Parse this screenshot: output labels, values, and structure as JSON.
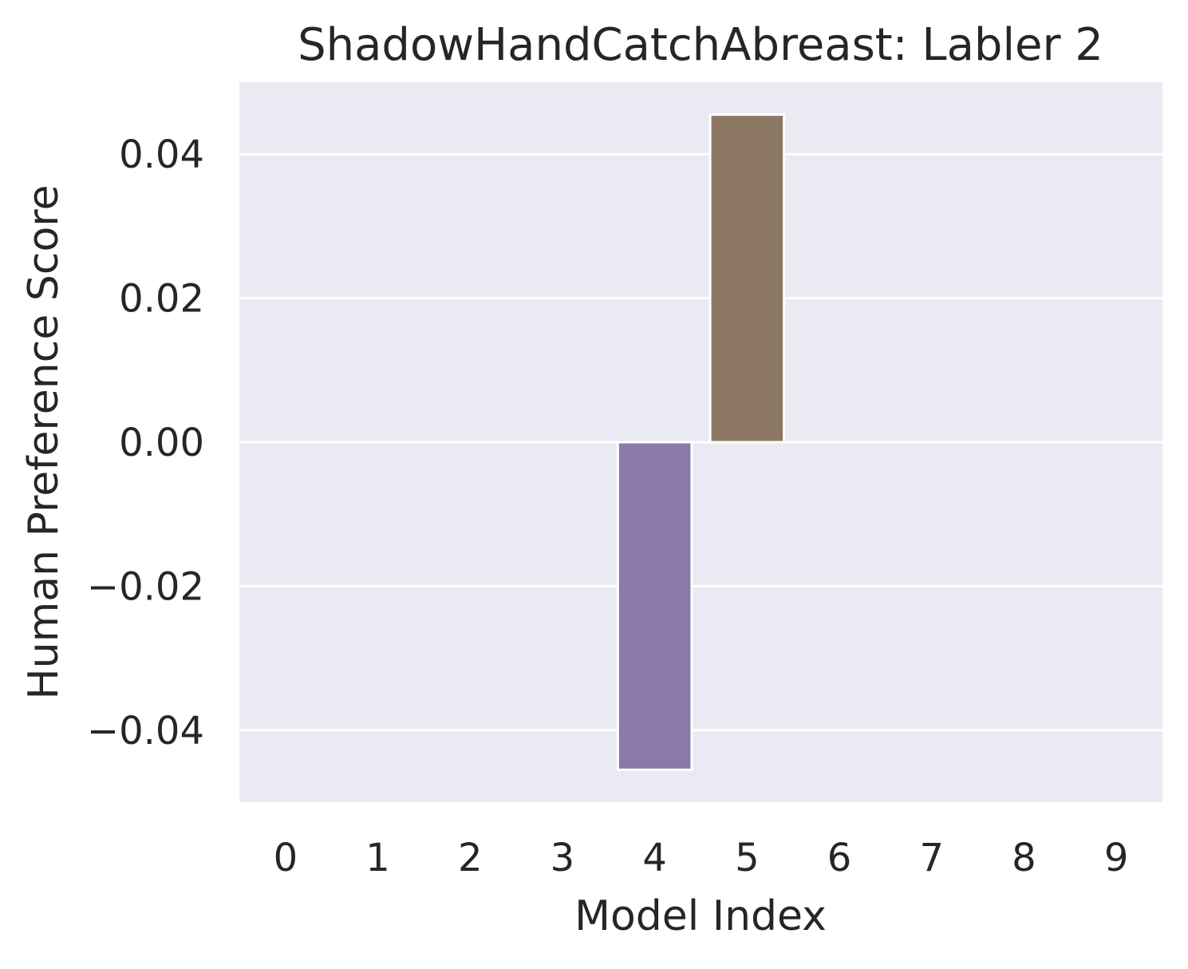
{
  "chart_data": {
    "type": "bar",
    "title": "ShadowHandCatchAbreast: Labler 2",
    "xlabel": "Model Index",
    "ylabel": "Human Preference Score",
    "categories": [
      "0",
      "1",
      "2",
      "3",
      "4",
      "5",
      "6",
      "7",
      "8",
      "9"
    ],
    "values": [
      0,
      0,
      0,
      0,
      -0.0455,
      0.0455,
      0,
      0,
      0,
      0
    ],
    "bar_colors": [
      "#4c72b0",
      "#dd8452",
      "#55a868",
      "#c44e52",
      "#8a7aab",
      "#8c7864",
      "#da8bc3",
      "#8c8c8c",
      "#ccb974",
      "#64b5cd"
    ],
    "ylim": [
      -0.05,
      0.05
    ],
    "yticks": [
      -0.04,
      -0.02,
      0.0,
      0.02,
      0.04
    ],
    "ytick_labels": [
      "−0.04",
      "−0.02",
      "0.00",
      "0.02",
      "0.04"
    ],
    "grid": true,
    "background": "#eaeaf2",
    "grid_color": "#ffffff"
  }
}
